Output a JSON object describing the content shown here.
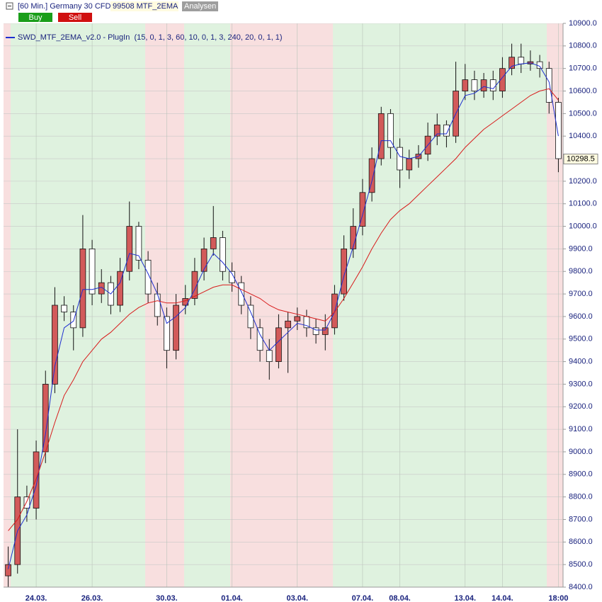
{
  "header": {
    "title": "[60 Min.] Germany 30 CFD",
    "account": "99508 MTF_2EMA",
    "tab": "Analysen",
    "buy": "Buy",
    "sell": "Sell"
  },
  "chart_data": {
    "type": "candlestick",
    "legend": "SWD_MTF_2EMA_v2.0 - PlugIn  (15, 0, 1, 3, 60, 10, 0, 1, 3, 240, 20, 0, 1, 1)",
    "up_color": "#d25a5a",
    "down_color": "#ffffff",
    "grid": true,
    "categories": [
      null,
      null,
      null,
      "24.03.",
      null,
      null,
      null,
      null,
      null,
      "26.03.",
      null,
      null,
      null,
      null,
      null,
      null,
      null,
      "30.03.",
      null,
      null,
      null,
      null,
      null,
      null,
      "01.04.",
      null,
      null,
      null,
      null,
      null,
      null,
      "03.04.",
      null,
      null,
      null,
      null,
      null,
      null,
      "07.04.",
      null,
      null,
      null,
      "08.04.",
      null,
      null,
      null,
      null,
      null,
      null,
      "13.04.",
      null,
      null,
      null,
      "14.04.",
      null,
      null,
      null,
      null,
      null,
      "18:00"
    ],
    "open": [
      8450,
      8500,
      8800,
      8750,
      9000,
      9300,
      9650,
      9620,
      9550,
      9900,
      9700,
      9750,
      9650,
      9800,
      10000,
      9850,
      9700,
      9600,
      9450,
      9650,
      9680,
      9800,
      9900,
      9950,
      9800,
      9750,
      9650,
      9550,
      9450,
      9400,
      9550,
      9580,
      9600,
      9550,
      9520,
      9550,
      9700,
      9900,
      10000,
      10150,
      10300,
      10500,
      10350,
      10250,
      10300,
      10320,
      10400,
      10450,
      10400,
      10600,
      10650,
      10600,
      10650,
      10600,
      10700,
      10750,
      10720,
      10730,
      10700,
      10550
    ],
    "high": [
      8580,
      9100,
      8850,
      9050,
      9360,
      9730,
      9690,
      9650,
      10050,
      9940,
      9810,
      9780,
      9860,
      10110,
      10020,
      9890,
      9750,
      9640,
      9700,
      9740,
      9860,
      9950,
      10090,
      9980,
      9840,
      9780,
      9690,
      9590,
      9500,
      9610,
      9620,
      9640,
      9630,
      9590,
      9610,
      9740,
      9960,
      10080,
      10210,
      10350,
      10530,
      10520,
      10390,
      10340,
      10360,
      10460,
      10500,
      10470,
      10730,
      10720,
      10690,
      10680,
      10690,
      10750,
      10810,
      10810,
      10780,
      10760,
      10730,
      10570
    ],
    "low": [
      8400,
      8460,
      8690,
      8700,
      8950,
      9260,
      9580,
      9450,
      9510,
      9650,
      9660,
      9610,
      9620,
      9760,
      9810,
      9660,
      9560,
      9370,
      9410,
      9610,
      9650,
      9760,
      9870,
      9760,
      9710,
      9610,
      9500,
      9400,
      9320,
      9370,
      9350,
      9540,
      9510,
      9480,
      9450,
      9520,
      9670,
      9860,
      9960,
      10110,
      10270,
      10300,
      10170,
      10210,
      10260,
      10290,
      10360,
      10350,
      10370,
      10560,
      10560,
      10570,
      10560,
      10570,
      10670,
      10680,
      10690,
      10660,
      10500,
      10240
    ],
    "close": [
      8500,
      8800,
      8750,
      9000,
      9300,
      9650,
      9620,
      9550,
      9900,
      9700,
      9750,
      9650,
      9800,
      10000,
      9850,
      9700,
      9600,
      9450,
      9650,
      9680,
      9800,
      9900,
      9950,
      9800,
      9750,
      9650,
      9550,
      9450,
      9400,
      9550,
      9580,
      9600,
      9550,
      9520,
      9550,
      9700,
      9900,
      10000,
      10150,
      10300,
      10500,
      10350,
      10250,
      10300,
      10320,
      10400,
      10450,
      10400,
      10600,
      10650,
      10600,
      10650,
      10600,
      10700,
      10750,
      10720,
      10730,
      10700,
      10550,
      10300
    ],
    "lines": [
      {
        "color": "#1e2fd0",
        "values": [
          8480,
          8650,
          8720,
          8850,
          9080,
          9380,
          9550,
          9580,
          9720,
          9720,
          9730,
          9700,
          9750,
          9880,
          9870,
          9790,
          9700,
          9570,
          9600,
          9640,
          9720,
          9810,
          9880,
          9840,
          9790,
          9710,
          9620,
          9520,
          9450,
          9490,
          9530,
          9570,
          9560,
          9540,
          9540,
          9620,
          9780,
          9910,
          10050,
          10200,
          10380,
          10380,
          10310,
          10300,
          10310,
          10360,
          10410,
          10410,
          10500,
          10580,
          10590,
          10620,
          10610,
          10660,
          10710,
          10720,
          10725,
          10710,
          10640,
          10400
        ]
      },
      {
        "color": "#d81b1b",
        "values": [
          8650,
          8700,
          8780,
          8880,
          9000,
          9130,
          9250,
          9320,
          9400,
          9450,
          9500,
          9530,
          9570,
          9610,
          9640,
          9660,
          9670,
          9660,
          9660,
          9670,
          9690,
          9710,
          9730,
          9740,
          9740,
          9720,
          9700,
          9680,
          9650,
          9630,
          9620,
          9610,
          9600,
          9590,
          9580,
          9620,
          9680,
          9750,
          9820,
          9900,
          9970,
          10030,
          10070,
          10100,
          10140,
          10180,
          10220,
          10260,
          10300,
          10350,
          10390,
          10430,
          10460,
          10490,
          10520,
          10550,
          10580,
          10600,
          10610,
          10560
        ]
      }
    ],
    "last_price": 10298.5,
    "ylim": [
      8400,
      10900
    ],
    "yticks": [
      {
        "value": 8400,
        "label": "8400.0"
      },
      {
        "value": 8500,
        "label": "8500.0"
      },
      {
        "value": 8600,
        "label": "8600.0"
      },
      {
        "value": 8700,
        "label": "8700.0"
      },
      {
        "value": 8800,
        "label": "8800.0"
      },
      {
        "value": 8900,
        "label": "8900.0"
      },
      {
        "value": 9000,
        "label": "9000.0"
      },
      {
        "value": 9100,
        "label": "9100.0"
      },
      {
        "value": 9200,
        "label": "9200.0"
      },
      {
        "value": 9300,
        "label": "9300.0"
      },
      {
        "value": 9400,
        "label": "9400.0"
      },
      {
        "value": 9500,
        "label": "9500.0"
      },
      {
        "value": 9600,
        "label": "9600.0"
      },
      {
        "value": 9700,
        "label": "9700.0"
      },
      {
        "value": 9800,
        "label": "9800.0"
      },
      {
        "value": 9900,
        "label": "9900.0"
      },
      {
        "value": 10000,
        "label": "10000.0"
      },
      {
        "value": 10100,
        "label": "10100.0"
      },
      {
        "value": 10200,
        "label": "10200.0"
      },
      {
        "value": 10300,
        "label": "10300.0"
      },
      {
        "value": 10400,
        "label": "10400.0"
      },
      {
        "value": 10500,
        "label": "10500.0"
      },
      {
        "value": 10600,
        "label": "10600.0"
      },
      {
        "value": 10700,
        "label": "10700.0"
      },
      {
        "value": 10800,
        "label": "10800.0"
      },
      {
        "value": 10900,
        "label": "10900.0"
      }
    ]
  }
}
